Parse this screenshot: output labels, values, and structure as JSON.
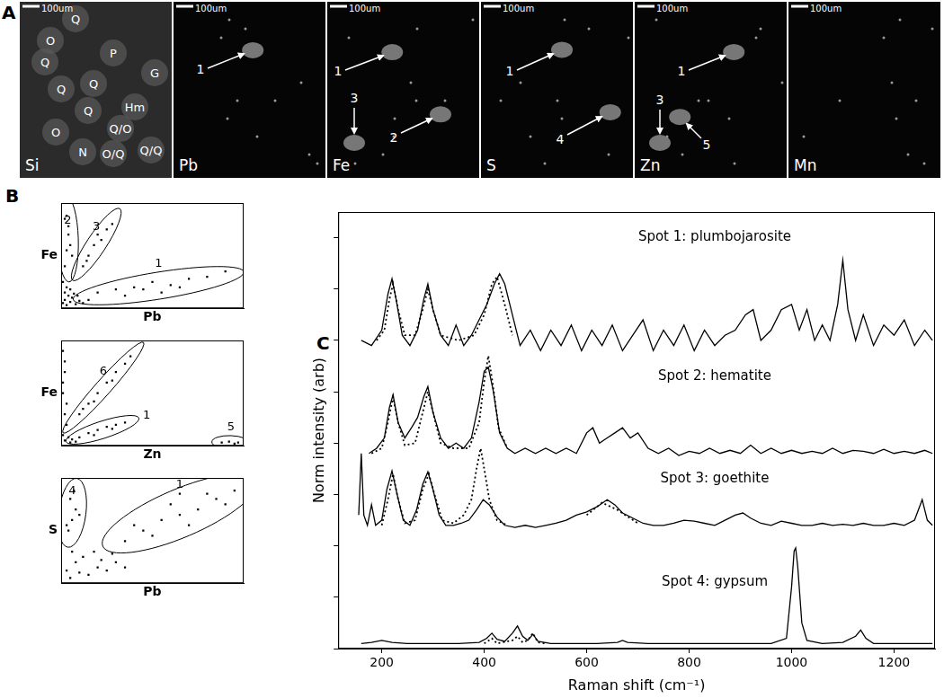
{
  "figure": {
    "label": "A",
    "maps": [
      {
        "element": "Si",
        "scale_bar": "100um",
        "labels": [
          "O",
          "Q",
          "Q",
          "P",
          "Q",
          "G",
          "Q",
          "Q",
          "Hm",
          "Q/O",
          "O",
          "N",
          "O/Q",
          "Q/Q"
        ]
      },
      {
        "element": "Pb",
        "scale_bar": "100um",
        "labels": [
          "1"
        ]
      },
      {
        "element": "Fe",
        "scale_bar": "100um",
        "labels": [
          "1",
          "3",
          "2"
        ]
      },
      {
        "element": "S",
        "scale_bar": "100um",
        "labels": [
          "1",
          "4"
        ]
      },
      {
        "element": "Zn",
        "scale_bar": "100um",
        "labels": [
          "3",
          "5",
          "1"
        ]
      },
      {
        "element": "Mn",
        "scale_bar": "100um",
        "labels": []
      }
    ]
  },
  "chart_data": [
    {
      "type": "scatter",
      "title": "B",
      "x_label": "Pb",
      "y_label": "Fe",
      "xlim": [
        0,
        100
      ],
      "ylim": [
        0,
        100
      ],
      "tick_labels": false,
      "grid": false,
      "marker": "square",
      "color": "#000000",
      "series": [
        {
          "x": [
            1,
            2,
            3,
            5,
            4,
            2,
            6,
            8,
            10,
            12,
            3,
            5,
            7,
            9,
            15,
            1
          ],
          "values": [
            5,
            8,
            3,
            6,
            12,
            15,
            10,
            4,
            7,
            5,
            20,
            18,
            14,
            12,
            8,
            25
          ]
        },
        {
          "name": "2",
          "x": [
            2,
            3,
            4,
            2,
            5,
            3,
            6,
            4
          ],
          "values": [
            40,
            55,
            70,
            85,
            60,
            88,
            50,
            78
          ]
        },
        {
          "name": "3",
          "x": [
            12,
            15,
            18,
            20,
            22,
            25,
            14,
            28
          ],
          "values": [
            40,
            50,
            60,
            70,
            65,
            75,
            45,
            80
          ]
        },
        {
          "name": "1",
          "x": [
            20,
            30,
            40,
            50,
            60,
            70,
            80,
            35,
            45,
            65,
            90,
            55
          ],
          "values": [
            15,
            18,
            20,
            25,
            22,
            28,
            30,
            12,
            18,
            20,
            35,
            15
          ]
        }
      ]
    },
    {
      "type": "scatter",
      "x_label": "Zn",
      "y_label": "Fe",
      "xlim": [
        0,
        100
      ],
      "ylim": [
        0,
        100
      ],
      "tick_labels": false,
      "grid": false,
      "marker": "square",
      "color": "#000000",
      "series": [
        {
          "x": [
            1,
            2,
            1,
            2,
            1,
            3,
            2,
            4,
            5,
            3,
            1,
            2,
            6,
            8
          ],
          "values": [
            10,
            30,
            50,
            70,
            90,
            20,
            5,
            8,
            3,
            40,
            60,
            80,
            6,
            4
          ]
        },
        {
          "name": "6",
          "x": [
            10,
            15,
            20,
            25,
            30,
            35,
            18,
            28,
            38,
            12
          ],
          "values": [
            30,
            40,
            50,
            60,
            70,
            78,
            42,
            62,
            85,
            35
          ]
        },
        {
          "name": "1",
          "x": [
            10,
            15,
            20,
            25,
            30,
            35,
            18,
            28
          ],
          "values": [
            8,
            12,
            15,
            18,
            20,
            22,
            10,
            16
          ]
        },
        {
          "name": "5",
          "x": [
            88,
            92,
            95,
            97
          ],
          "values": [
            3,
            4,
            2,
            3
          ]
        }
      ]
    },
    {
      "type": "scatter",
      "x_label": "Pb",
      "y_label": "S",
      "xlim": [
        0,
        100
      ],
      "ylim": [
        0,
        100
      ],
      "tick_labels": false,
      "grid": false,
      "marker": "square",
      "color": "#000000",
      "series": [
        {
          "x": [
            5,
            10,
            15,
            20,
            8,
            25,
            12,
            30,
            18,
            3,
            22,
            28,
            35,
            6
          ],
          "values": [
            5,
            10,
            8,
            15,
            20,
            12,
            25,
            20,
            30,
            12,
            22,
            28,
            15,
            30
          ]
        },
        {
          "name": "4",
          "x": [
            4,
            6,
            8,
            5,
            10,
            7,
            3
          ],
          "values": [
            50,
            60,
            70,
            80,
            65,
            88,
            55
          ]
        },
        {
          "name": "1",
          "x": [
            35,
            45,
            55,
            65,
            75,
            85,
            50,
            60,
            70,
            80,
            40,
            90,
            95,
            65
          ],
          "values": [
            40,
            50,
            60,
            65,
            70,
            80,
            45,
            75,
            55,
            85,
            55,
            75,
            88,
            85
          ]
        }
      ]
    },
    {
      "type": "line",
      "title": "C",
      "x_label": "Raman shift (cm⁻¹)",
      "y_label": "Norm intensity (arb)",
      "xlim": [
        115,
        1280
      ],
      "xticks": [
        200,
        400,
        600,
        800,
        1000,
        1200
      ],
      "ylim": [
        0,
        4.25
      ],
      "yticks": [
        0,
        0.5,
        1,
        1.5,
        2,
        2.5,
        3,
        3.5,
        4
      ],
      "tick_labels": "x",
      "grid": false,
      "color": "#000000",
      "annotations": [
        {
          "text": "Spot 1: plumbojarosite",
          "x": 850,
          "y": 4.0
        },
        {
          "text": "Spot 2: hematite",
          "x": 850,
          "y": 2.65
        },
        {
          "text": "Spot 3: goethite",
          "x": 850,
          "y": 1.65
        },
        {
          "text": "Spot 4: gypsum",
          "x": 850,
          "y": 0.65
        }
      ],
      "series": [
        {
          "line_style": "solid",
          "x": [
            160,
            180,
            200,
            212,
            220,
            228,
            240,
            255,
            270,
            282,
            290,
            300,
            315,
            330,
            345,
            360,
            375,
            390,
            405,
            420,
            430,
            440,
            455,
            470,
            490,
            510,
            530,
            550,
            570,
            590,
            610,
            630,
            650,
            670,
            690,
            710,
            730,
            750,
            770,
            790,
            810,
            830,
            850,
            870,
            890,
            910,
            925,
            940,
            960,
            980,
            1000,
            1015,
            1030,
            1045,
            1060,
            1075,
            1090,
            1100,
            1110,
            1125,
            1140,
            1160,
            1180,
            1200,
            1220,
            1240,
            1260,
            1275
          ],
          "values": [
            3.0,
            2.95,
            3.1,
            3.45,
            3.6,
            3.4,
            3.05,
            2.95,
            3.1,
            3.4,
            3.55,
            3.3,
            3.05,
            2.95,
            3.15,
            2.95,
            3.05,
            3.2,
            3.35,
            3.55,
            3.65,
            3.55,
            3.25,
            2.95,
            3.1,
            2.9,
            3.1,
            2.95,
            3.15,
            2.9,
            3.1,
            2.95,
            3.15,
            2.9,
            3.05,
            3.2,
            2.9,
            3.1,
            2.95,
            3.15,
            2.9,
            3.1,
            2.95,
            3.05,
            3.1,
            3.25,
            3.3,
            3.0,
            3.1,
            3.3,
            3.35,
            3.1,
            3.3,
            3.0,
            3.15,
            3.0,
            3.35,
            3.78,
            3.3,
            3.0,
            3.25,
            2.95,
            3.15,
            3.05,
            3.2,
            2.95,
            3.1,
            3.0
          ]
        },
        {
          "line_style": "dotted",
          "x": [
            190,
            205,
            215,
            222,
            232,
            245,
            265,
            280,
            290,
            300,
            315,
            350,
            380,
            400,
            415,
            425,
            440,
            455
          ],
          "values": [
            3.0,
            3.1,
            3.4,
            3.55,
            3.3,
            3.05,
            3.05,
            3.3,
            3.5,
            3.3,
            3.05,
            3.0,
            3.05,
            3.25,
            3.55,
            3.62,
            3.35,
            3.05
          ]
        },
        {
          "line_style": "solid",
          "x": [
            175,
            190,
            205,
            215,
            222,
            232,
            245,
            258,
            270,
            282,
            290,
            300,
            315,
            330,
            345,
            360,
            375,
            390,
            400,
            408,
            418,
            430,
            445,
            460,
            480,
            500,
            520,
            540,
            560,
            580,
            600,
            612,
            625,
            640,
            655,
            670,
            685,
            700,
            720,
            740,
            760,
            780,
            800,
            820,
            840,
            860,
            880,
            900,
            920,
            940,
            960,
            980,
            1000,
            1020,
            1040,
            1060,
            1080,
            1100,
            1120,
            1140,
            1160,
            1180,
            1200,
            1220,
            1240,
            1260,
            1275
          ],
          "values": [
            1.9,
            1.95,
            2.05,
            2.35,
            2.47,
            2.2,
            2.05,
            2.15,
            2.25,
            2.45,
            2.55,
            2.3,
            2.05,
            1.95,
            2.0,
            1.95,
            2.05,
            2.4,
            2.7,
            2.74,
            2.5,
            2.1,
            1.95,
            1.9,
            1.95,
            1.9,
            1.95,
            1.9,
            1.95,
            1.9,
            2.1,
            2.15,
            2.0,
            2.05,
            2.1,
            2.15,
            2.05,
            2.1,
            1.95,
            1.9,
            1.95,
            1.88,
            1.92,
            1.9,
            1.95,
            1.9,
            1.93,
            1.9,
            1.98,
            1.9,
            1.95,
            1.9,
            1.93,
            1.9,
            1.92,
            1.9,
            1.95,
            1.9,
            1.93,
            1.92,
            1.9,
            1.94,
            1.9,
            1.92,
            1.9,
            1.93,
            1.9
          ]
        },
        {
          "line_style": "dotted",
          "x": [
            180,
            200,
            212,
            222,
            232,
            245,
            265,
            280,
            290,
            300,
            315,
            340,
            370,
            390,
            400,
            408,
            416,
            428,
            445
          ],
          "values": [
            1.9,
            1.95,
            2.2,
            2.45,
            2.2,
            1.98,
            2.0,
            2.3,
            2.5,
            2.3,
            2.0,
            1.95,
            1.95,
            2.2,
            2.6,
            2.85,
            2.6,
            2.15,
            1.95
          ]
        },
        {
          "line_style": "solid",
          "x": [
            155,
            160,
            165,
            172,
            180,
            188,
            200,
            210,
            220,
            230,
            242,
            255,
            268,
            280,
            290,
            300,
            312,
            325,
            340,
            355,
            370,
            385,
            398,
            410,
            425,
            440,
            460,
            480,
            500,
            520,
            540,
            560,
            580,
            600,
            620,
            640,
            655,
            670,
            690,
            710,
            730,
            750,
            770,
            790,
            810,
            830,
            850,
            870,
            890,
            905,
            920,
            940,
            960,
            980,
            1000,
            1020,
            1040,
            1060,
            1080,
            1100,
            1120,
            1140,
            1160,
            1180,
            1200,
            1220,
            1240,
            1255,
            1265,
            1275
          ],
          "values": [
            1.3,
            1.9,
            1.3,
            1.2,
            1.4,
            1.2,
            1.25,
            1.55,
            1.73,
            1.5,
            1.25,
            1.2,
            1.35,
            1.6,
            1.72,
            1.55,
            1.3,
            1.2,
            1.2,
            1.22,
            1.25,
            1.35,
            1.45,
            1.4,
            1.28,
            1.2,
            1.18,
            1.2,
            1.18,
            1.2,
            1.22,
            1.25,
            1.3,
            1.33,
            1.38,
            1.45,
            1.4,
            1.32,
            1.27,
            1.22,
            1.2,
            1.2,
            1.22,
            1.25,
            1.24,
            1.22,
            1.2,
            1.25,
            1.3,
            1.32,
            1.27,
            1.22,
            1.2,
            1.24,
            1.22,
            1.2,
            1.2,
            1.22,
            1.2,
            1.21,
            1.2,
            1.22,
            1.2,
            1.2,
            1.22,
            1.2,
            1.25,
            1.45,
            1.25,
            1.2
          ]
        },
        {
          "line_style": "dotted",
          "x": [
            200,
            212,
            222,
            232,
            245,
            265,
            280,
            292,
            303,
            318,
            340,
            360,
            375,
            385,
            393,
            400,
            410,
            425,
            445,
            520,
            600,
            630,
            660,
            700
          ],
          "values": [
            1.2,
            1.45,
            1.7,
            1.45,
            1.22,
            1.25,
            1.55,
            1.7,
            1.5,
            1.25,
            1.22,
            1.3,
            1.45,
            1.75,
            1.95,
            1.75,
            1.45,
            1.25,
            1.2,
            null,
            1.3,
            1.42,
            1.35,
            1.22
          ]
        },
        {
          "line_style": "solid",
          "x": [
            160,
            180,
            200,
            220,
            250,
            300,
            350,
            390,
            405,
            415,
            425,
            440,
            455,
            465,
            475,
            485,
            495,
            505,
            530,
            580,
            620,
            660,
            670,
            680,
            720,
            800,
            900,
            960,
            990,
            1000,
            1005,
            1008,
            1012,
            1020,
            1030,
            1060,
            1100,
            1125,
            1135,
            1145,
            1160,
            1200,
            1240,
            1275
          ],
          "values": [
            0.05,
            0.06,
            0.08,
            0.06,
            0.05,
            0.05,
            0.05,
            0.06,
            0.1,
            0.15,
            0.09,
            0.07,
            0.15,
            0.22,
            0.12,
            0.08,
            0.14,
            0.07,
            0.05,
            0.05,
            0.05,
            0.06,
            0.08,
            0.06,
            0.05,
            0.05,
            0.05,
            0.05,
            0.1,
            0.6,
            0.95,
            0.98,
            0.8,
            0.25,
            0.08,
            0.05,
            0.06,
            0.12,
            0.18,
            0.1,
            0.05,
            0.05,
            0.05,
            0.05
          ]
        },
        {
          "line_style": "dotted",
          "x": [
            400,
            415,
            425,
            455,
            465,
            475,
            485,
            495,
            505,
            520
          ],
          "values": [
            0.05,
            0.1,
            0.05,
            0.08,
            0.12,
            0.06,
            0.08,
            0.15,
            0.06,
            0.05
          ]
        }
      ]
    }
  ]
}
